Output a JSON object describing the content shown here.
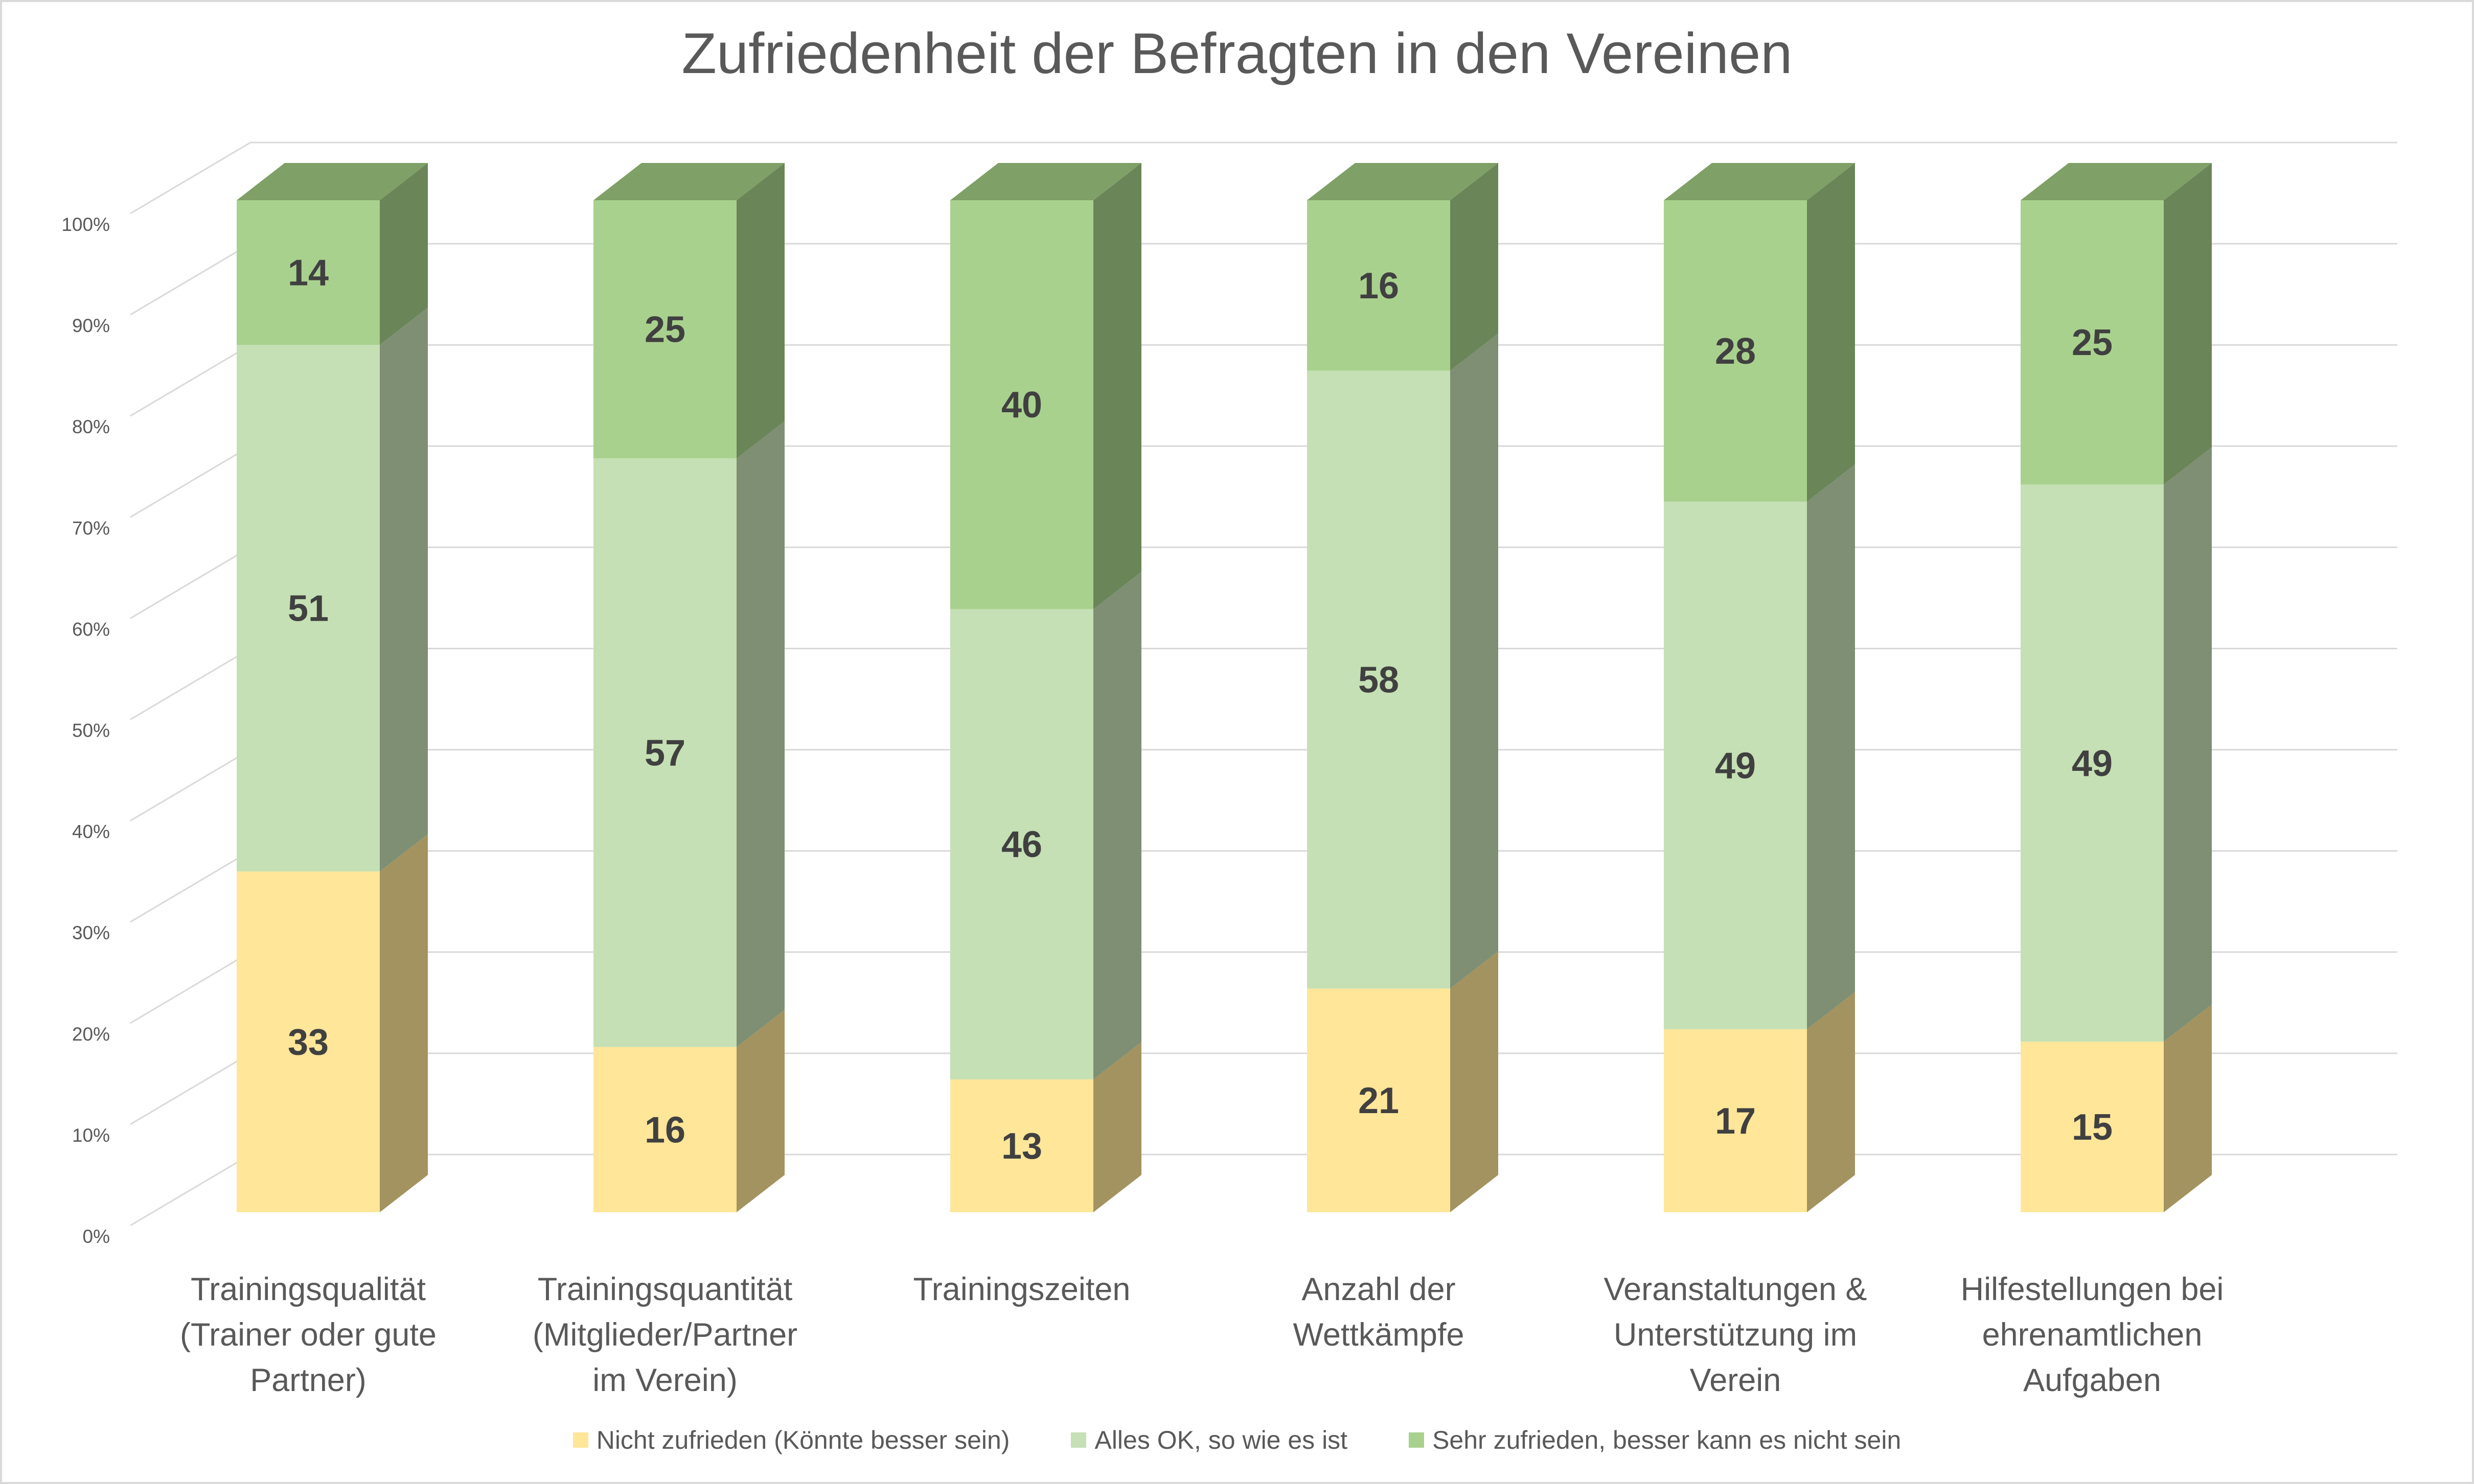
{
  "chart_data": {
    "type": "bar",
    "stacked": true,
    "percent_stacked": true,
    "three_d": true,
    "title": "Zufriedenheit der Befragten in den Vereinen",
    "categories": [
      [
        "Trainingsqualität",
        "(Trainer oder gute",
        "Partner)"
      ],
      [
        "Trainingsquantität",
        "(Mitglieder/Partner",
        "im Verein)"
      ],
      [
        "Trainingszeiten"
      ],
      [
        "Anzahl der",
        "Wettkämpfe"
      ],
      [
        "Veranstaltungen &",
        "Unterstützung im",
        "Verein"
      ],
      [
        "Hilfestellungen bei",
        "ehrenamtlichen",
        "Aufgaben"
      ]
    ],
    "series": [
      {
        "name": "Nicht zufrieden (Könnte besser sein)",
        "values": [
          33,
          16,
          13,
          21,
          17,
          15
        ],
        "color": "#ffe699",
        "side_color": "#a39360",
        "top_color": "#c9b574"
      },
      {
        "name": "Alles OK, so wie es ist",
        "values": [
          51,
          57,
          46,
          58,
          49,
          49
        ],
        "color": "#c5e0b4",
        "side_color": "#7e8f73",
        "top_color": "#a3b895"
      },
      {
        "name": "Sehr zufrieden, besser kann es nicht sein",
        "values": [
          14,
          25,
          40,
          16,
          28,
          25
        ],
        "color": "#a9d18e",
        "side_color": "#6a8558",
        "top_color": "#7fa066"
      }
    ],
    "yticks": [
      "0%",
      "10%",
      "20%",
      "30%",
      "40%",
      "50%",
      "60%",
      "70%",
      "80%",
      "90%",
      "100%"
    ],
    "ylim": [
      0,
      100
    ],
    "grid": true,
    "legend_position": "bottom"
  }
}
